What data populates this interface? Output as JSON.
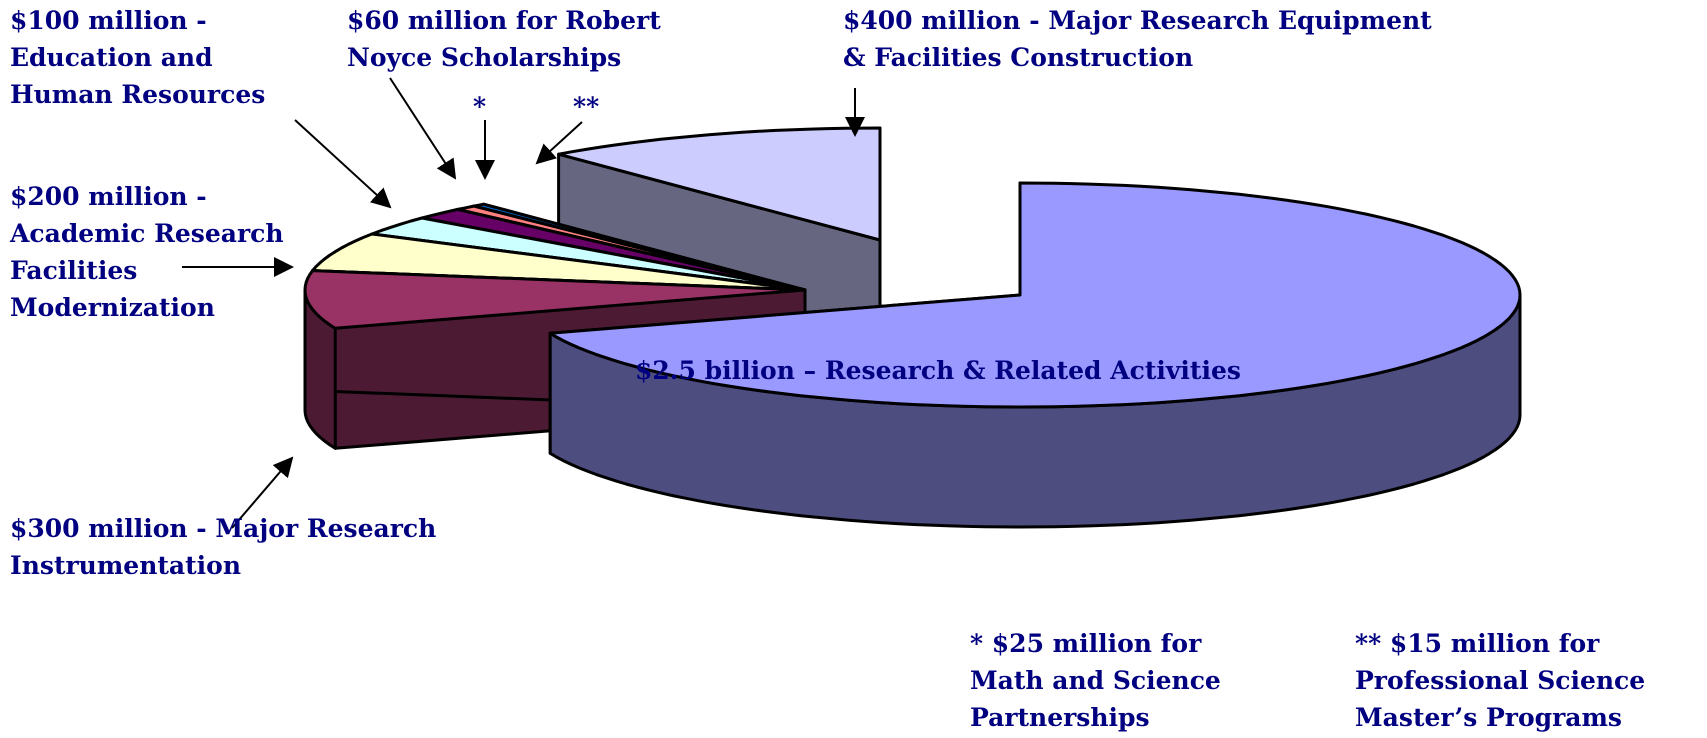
{
  "chart_data": {
    "type": "pie3d",
    "categories": [
      "$2.5 billion – Research & Related Activities",
      "$300 million - Major Research\nInstrumentation",
      "$200 million -\nAcademic Research\nFacilities\nModernization",
      "$100 million -\nEducation and\nHuman Resources",
      "$60 million for Robert\nNoyce Scholarships",
      "* $25 million for\nMath and Science\nPartnerships",
      "** $15 million for\nProfessional Science\nMaster’s Programs",
      "$400 million - Major Research Equipment\n& Facilities Construction"
    ],
    "values": [
      2500,
      300,
      200,
      100,
      60,
      25,
      15,
      400
    ],
    "colors": [
      "#9999ff",
      "#993366",
      "#ffffcc",
      "#ccffff",
      "#660066",
      "#ff8080",
      "#0066cc",
      "#ccccff"
    ],
    "callouts": [
      "*",
      "**"
    ]
  }
}
